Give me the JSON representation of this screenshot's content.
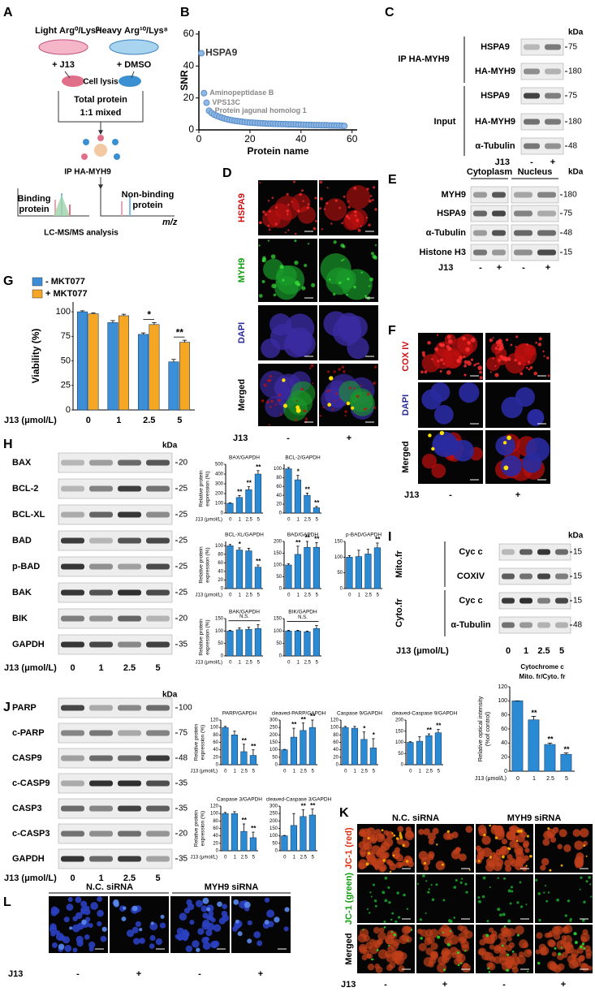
{
  "A": {
    "letter": "A",
    "light": "Light",
    "light_label": "Arg⁰/Lys⁰",
    "heavy": "Heavy",
    "heavy_label": "Arg¹⁰/Lys⁸",
    "treat_left": "+ J13",
    "treat_right": "+ DMSO",
    "lysis": "Cell lysis",
    "total": "Total protein",
    "mixed": "1:1 mixed",
    "ip": "IP HA-MYH9",
    "binding": [
      "Binding",
      "protein"
    ],
    "nonbinding": [
      "Non-binding",
      "protein"
    ],
    "mz": "m/z",
    "analysis": "LC-MS/MS analysis"
  },
  "B": {
    "letter": "B",
    "type": "scatter",
    "xlabel": "Protein name",
    "ylabel": "SNR",
    "color": "#8fb8e6",
    "x": [
      1,
      2,
      3,
      4,
      5,
      6,
      7,
      8,
      9,
      10,
      11,
      12,
      13,
      14,
      15,
      16,
      17,
      18,
      19,
      20,
      21,
      22,
      23,
      24,
      25,
      26,
      27,
      28,
      29,
      30,
      31,
      32,
      33,
      34,
      35,
      36,
      37,
      38,
      39,
      40,
      41,
      42,
      43,
      44,
      45,
      46,
      47,
      48,
      49,
      50,
      51,
      52,
      53,
      54,
      55,
      56,
      57
    ],
    "values": [
      48,
      23,
      17,
      12,
      10.5,
      9.5,
      8.8,
      8.2,
      7.6,
      7.1,
      6.7,
      6.3,
      6,
      5.7,
      5.5,
      5.3,
      5.1,
      4.9,
      4.7,
      4.6,
      4.5,
      4.4,
      4.3,
      4.2,
      4.1,
      4,
      3.9,
      3.9,
      3.8,
      3.8,
      3.7,
      3.7,
      3.6,
      3.6,
      3.5,
      3.5,
      3.4,
      3.4,
      3.3,
      3.3,
      3.2,
      3.2,
      3.1,
      3.1,
      3,
      3,
      3,
      2.9,
      2.9,
      2.9,
      2.8,
      2.8,
      2.8,
      2.7,
      2.7,
      2.6,
      2.5
    ],
    "point_labels": [
      "HSPA9",
      "Aminopeptidase B",
      "VPS13C",
      "Protein jagunal homolog 1",
      null,
      null,
      null,
      null,
      null,
      null,
      null,
      null,
      null,
      null,
      null,
      null,
      null,
      null,
      null,
      null,
      null,
      null,
      null,
      null,
      null,
      null,
      null,
      null,
      null,
      null,
      null,
      null,
      null,
      null,
      null,
      null,
      null,
      null,
      null,
      null,
      null,
      null,
      null,
      null,
      null,
      null,
      null,
      null,
      null,
      null,
      null,
      null,
      null,
      null,
      null,
      null,
      null
    ],
    "xlim": [
      0,
      62
    ],
    "ylim": [
      0,
      62
    ],
    "xticks": [
      0,
      20,
      40,
      60
    ],
    "yticks": [
      0,
      20,
      40,
      60
    ]
  },
  "C": {
    "letter": "C",
    "kda": "kDa",
    "groups": [
      {
        "label": "IP HA-MYH9",
        "rows": [
          {
            "name": "HSPA9",
            "kda": 75
          },
          {
            "name": "HA-MYH9",
            "kda": 180
          }
        ]
      },
      {
        "label": "Input",
        "rows": [
          {
            "name": "HSPA9",
            "kda": 75
          },
          {
            "name": "HA-MYH9",
            "kda": 180
          },
          {
            "name": "α-Tubulin",
            "kda": 48
          }
        ]
      }
    ],
    "treatment": "J13",
    "lanes": [
      "-",
      "+"
    ]
  },
  "D": {
    "letter": "D",
    "rows": [
      "HSPA9",
      "MYH9",
      "DAPI",
      "Merged"
    ],
    "treatment": "J13",
    "lanes": [
      "-",
      "+"
    ]
  },
  "E": {
    "letter": "E",
    "fractions": [
      "Cytoplasm",
      "Nucleus"
    ],
    "kda": "kDa",
    "rows": [
      {
        "name": "MYH9",
        "kda": 180
      },
      {
        "name": "HSPA9",
        "kda": 75
      },
      {
        "name": "α-Tubulin",
        "kda": 48
      },
      {
        "name": "Histone H3",
        "kda": 15
      }
    ],
    "treatment": "J13",
    "lanes": [
      "-",
      "+",
      "-",
      "+"
    ]
  },
  "F": {
    "letter": "F",
    "rows": [
      "COX IV",
      "DAPI",
      "Merged"
    ],
    "treatment": "J13",
    "lanes": [
      "-",
      "+"
    ]
  },
  "G": {
    "letter": "G",
    "type": "bar",
    "ylabel": "Viability (%)",
    "xlabel": "J13 (μmol/L)",
    "categories": [
      "0",
      "1",
      "2.5",
      "5"
    ],
    "series": [
      {
        "name": "- MKT077",
        "color": "#3c8fd6",
        "values": [
          100,
          89,
          77,
          49
        ],
        "errors": [
          1,
          2,
          1.5,
          2.5
        ]
      },
      {
        "name": "+ MKT077",
        "color": "#f5a623",
        "values": [
          98,
          96,
          87,
          69
        ],
        "errors": [
          1,
          1.5,
          2,
          2
        ]
      }
    ],
    "ylim": [
      0,
      110
    ],
    "yticks": [
      0,
      25,
      50,
      75,
      100
    ],
    "significance": [
      null,
      null,
      "*",
      "**"
    ]
  },
  "H": {
    "letter": "H",
    "kda": "kDa",
    "rows": [
      {
        "name": "BAX",
        "kda": 20
      },
      {
        "name": "BCL-2",
        "kda": 25
      },
      {
        "name": "BCL-XL",
        "kda": 25
      },
      {
        "name": "BAD",
        "kda": 25
      },
      {
        "name": "p-BAD",
        "kda": 25
      },
      {
        "name": "BAK",
        "kda": 25
      },
      {
        "name": "BIK",
        "kda": 20
      },
      {
        "name": "GAPDH",
        "kda": 35
      }
    ],
    "treatment": "J13 (μmol/L)",
    "lanes": [
      "0",
      "1",
      "2.5",
      "5"
    ],
    "charts": [
      {
        "type": "bar",
        "title": "BAX/GAPDH",
        "ylabel": [
          "Relative protein",
          "expression (%)"
        ],
        "xlabel": "J13 (μmol/L)",
        "color": "#2a8ad4",
        "categories": [
          "0",
          "1",
          "2.5",
          "5"
        ],
        "values": [
          100,
          160,
          240,
          400
        ],
        "errors": [
          5,
          20,
          30,
          35
        ],
        "ylim": [
          0,
          500
        ],
        "yticks": [
          0,
          100,
          200,
          300,
          400,
          500
        ],
        "significance": [
          null,
          "**",
          "**",
          "**"
        ]
      },
      {
        "type": "bar",
        "title": "BCL-2/GAPDH",
        "color": "#2a8ad4",
        "categories": [
          "0",
          "1",
          "2.5",
          "5"
        ],
        "values": [
          100,
          75,
          40,
          12
        ],
        "errors": [
          3,
          10,
          5,
          3
        ],
        "ylim": [
          0,
          110
        ],
        "yticks": [
          0,
          20,
          40,
          60,
          80,
          100
        ],
        "significance": [
          null,
          "*",
          "**",
          "**"
        ]
      },
      {
        "type": "bar",
        "title": "BCL-XL/GAPDH",
        "ylabel": [
          "Relative protein",
          "expression (%)"
        ],
        "xlabel": "J13 (μmol/L)",
        "color": "#2a8ad4",
        "categories": [
          "0",
          "1",
          "2.5",
          "5"
        ],
        "values": [
          100,
          90,
          88,
          50
        ],
        "errors": [
          3,
          5,
          6,
          5
        ],
        "ylim": [
          0,
          110
        ],
        "yticks": [
          0,
          20,
          40,
          60,
          80,
          100
        ],
        "significance": [
          null,
          "*",
          null,
          "**"
        ]
      },
      {
        "type": "bar",
        "title": "BAD/GAPDH",
        "color": "#2a8ad4",
        "categories": [
          "0",
          "1",
          "2.5",
          "5"
        ],
        "values": [
          100,
          145,
          175,
          175
        ],
        "errors": [
          5,
          35,
          25,
          20
        ],
        "ylim": [
          0,
          200
        ],
        "yticks": [
          0,
          50,
          100,
          150,
          200
        ],
        "significance": [
          null,
          "**",
          "**",
          "**"
        ]
      },
      {
        "type": "bar",
        "title": "p-BAD/GAPDH",
        "color": "#2a8ad4",
        "categories": [
          "0",
          "1",
          "2.5",
          "5"
        ],
        "values": [
          100,
          102,
          110,
          130
        ],
        "errors": [
          5,
          20,
          15,
          15
        ],
        "ylim": [
          0,
          150
        ],
        "yticks": [
          0,
          50,
          100,
          150
        ],
        "significance": [
          null,
          null,
          null,
          "**"
        ]
      },
      {
        "type": "bar",
        "title": "BAK/GAPDH",
        "ylabel": [
          "Relative protein",
          "expression (%)"
        ],
        "xlabel": "J13 (μmol/L)",
        "color": "#2a8ad4",
        "categories": [
          "0",
          "1",
          "2.5",
          "5"
        ],
        "values": [
          100,
          105,
          107,
          110
        ],
        "errors": [
          3,
          8,
          8,
          15
        ],
        "ylim": [
          0,
          150
        ],
        "yticks": [
          0,
          50,
          100,
          150
        ],
        "note": "N.S."
      },
      {
        "type": "bar",
        "title": "BIK/GAPDH",
        "color": "#2a8ad4",
        "categories": [
          "0",
          "1",
          "2.5",
          "5"
        ],
        "values": [
          100,
          100,
          97,
          110
        ],
        "errors": [
          3,
          3,
          3,
          12
        ],
        "ylim": [
          0,
          150
        ],
        "yticks": [
          0,
          50,
          100,
          150
        ],
        "note": "N.S."
      }
    ]
  },
  "I": {
    "letter": "I",
    "kda": "kDa",
    "groups": [
      {
        "label": "Mito.fr",
        "rows": [
          {
            "name": "Cyc c",
            "kda": 15
          },
          {
            "name": "COXIV",
            "kda": 15
          }
        ]
      },
      {
        "label": "Cyto.fr",
        "rows": [
          {
            "name": "Cyc c",
            "kda": 15
          },
          {
            "name": "α-Tubulin",
            "kda": 48
          }
        ]
      }
    ],
    "treatment": "J13 (μmol/L)",
    "lanes": [
      "0",
      "1",
      "2.5",
      "5"
    ],
    "chart": {
      "type": "bar",
      "title": [
        "Cytochrome c",
        "Mito. fr/Cyto. fr"
      ],
      "ylabel": [
        "Relative optical intensity",
        "(%of control)"
      ],
      "xlabel": "J13 (μmol/L)",
      "color": "#2a8ad4",
      "categories": [
        "0",
        "1",
        "2.5",
        "5"
      ],
      "values": [
        100,
        73,
        38,
        24
      ],
      "errors": [
        0,
        5,
        2,
        2
      ],
      "ylim": [
        0,
        120
      ],
      "yticks": [
        0,
        20,
        40,
        60,
        80,
        100,
        120
      ],
      "significance": [
        null,
        "**",
        "**",
        "**"
      ]
    }
  },
  "J": {
    "letter": "J",
    "kda": "kDa",
    "rows": [
      {
        "name": "PARP",
        "kda": 100
      },
      {
        "name": "c-PARP",
        "kda": 75
      },
      {
        "name": "CASP9",
        "kda": 48
      },
      {
        "name": "c-CASP9",
        "kda": 35
      },
      {
        "name": "CASP3",
        "kda": 35
      },
      {
        "name": "c-CASP3",
        "kda": 20
      },
      {
        "name": "GAPDH",
        "kda": 35
      }
    ],
    "treatment": "J13 (μmol/L)",
    "lanes": [
      "0",
      "1",
      "2.5",
      "5"
    ],
    "charts": [
      {
        "type": "bar",
        "title": "PARP/GAPDH",
        "ylabel": [
          "Relative protein",
          "expression (%)"
        ],
        "xlabel": "J13 (μmol/L)",
        "color": "#2a8ad4",
        "categories": [
          "0",
          "1",
          "2.5",
          "5"
        ],
        "values": [
          100,
          80,
          35,
          25
        ],
        "errors": [
          3,
          10,
          20,
          15
        ],
        "ylim": [
          0,
          120
        ],
        "yticks": [
          0,
          20,
          40,
          60,
          80,
          100,
          120
        ],
        "significance": [
          null,
          null,
          "**",
          "**"
        ]
      },
      {
        "type": "bar",
        "title": "cleaved-PARP/GAPDH",
        "color": "#2a8ad4",
        "categories": [
          "0",
          "1",
          "2.5",
          "5"
        ],
        "values": [
          100,
          185,
          230,
          250
        ],
        "errors": [
          3,
          60,
          50,
          50
        ],
        "ylim": [
          0,
          300
        ],
        "yticks": [
          0,
          50,
          100,
          150,
          200,
          250,
          300
        ],
        "significance": [
          null,
          "**",
          "**",
          "**"
        ]
      },
      {
        "type": "bar",
        "title": "Caspase 9/GAPDH",
        "color": "#2a8ad4",
        "categories": [
          "0",
          "1",
          "2.5",
          "5"
        ],
        "values": [
          100,
          98,
          68,
          45
        ],
        "errors": [
          3,
          5,
          20,
          25
        ],
        "ylim": [
          0,
          120
        ],
        "yticks": [
          0,
          20,
          40,
          60,
          80,
          100,
          120
        ],
        "significance": [
          null,
          null,
          "*",
          "*"
        ]
      },
      {
        "type": "bar",
        "title": "cleaved-Caspase 9/GAPDH",
        "color": "#2a8ad4",
        "categories": [
          "0",
          "1",
          "2.5",
          "5"
        ],
        "values": [
          100,
          105,
          130,
          143
        ],
        "errors": [
          3,
          20,
          8,
          15
        ],
        "ylim": [
          0,
          200
        ],
        "yticks": [
          0,
          50,
          100,
          150,
          200
        ],
        "significance": [
          null,
          null,
          "**",
          "**"
        ]
      },
      {
        "type": "bar",
        "title": "Caspase 3/GAPDH",
        "ylabel": [
          "Relative protein",
          "expression (%)"
        ],
        "xlabel": "J13 (μmol/L)",
        "color": "#2a8ad4",
        "categories": [
          "0",
          "1",
          "2.5",
          "5"
        ],
        "values": [
          100,
          100,
          52,
          35
        ],
        "errors": [
          3,
          5,
          20,
          15
        ],
        "ylim": [
          0,
          120
        ],
        "yticks": [
          0,
          20,
          40,
          60,
          80,
          100,
          120
        ],
        "significance": [
          null,
          null,
          "**",
          "**"
        ]
      },
      {
        "type": "bar",
        "title": "cleaved-Caspase 3/GAPDH",
        "color": "#2a8ad4",
        "categories": [
          "0",
          "1",
          "2.5",
          "5"
        ],
        "values": [
          100,
          170,
          230,
          240
        ],
        "errors": [
          3,
          80,
          45,
          40
        ],
        "ylim": [
          0,
          300
        ],
        "yticks": [
          0,
          50,
          100,
          150,
          200,
          250,
          300
        ],
        "significance": [
          null,
          null,
          "**",
          "**"
        ]
      }
    ]
  },
  "K": {
    "letter": "K",
    "groups": [
      "N.C. siRNA",
      "MYH9 siRNA"
    ],
    "rows": [
      "JC-1 (red)",
      "JC-1 (green)",
      "Merged"
    ],
    "treatment": "J13",
    "lanes": [
      "-",
      "+",
      "-",
      "+"
    ]
  },
  "L": {
    "letter": "L",
    "groups": [
      "N.C. siRNA",
      "MYH9 siRNA"
    ],
    "treatment": "J13",
    "lanes": [
      "-",
      "+",
      "-",
      "+"
    ]
  }
}
